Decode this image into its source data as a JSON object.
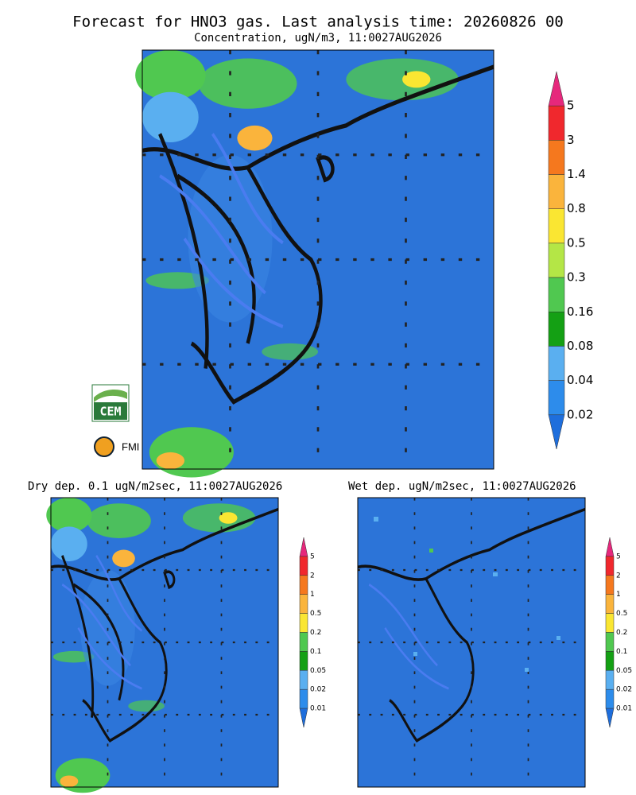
{
  "header": {
    "title": "Forecast for HNO3 gas. Last analysis time: 20260826 00",
    "subtitle": "Concentration, ugN/m3, 11:0027AUG2026"
  },
  "logos": [
    "CEM",
    "FMI"
  ],
  "panels": [
    {
      "title": "Dry dep. 0.1 ugN/m2sec, 11:0027AUG2026"
    },
    {
      "title": "Wet dep. ugN/m2sec, 11:0027AUG2026"
    }
  ],
  "legends": [
    {
      "labels": [
        "5",
        "3",
        "1.4",
        "0.8",
        "0.5",
        "0.3",
        "0.16",
        "0.08",
        "0.04",
        "0.02"
      ],
      "colors": [
        "#e6287c",
        "#f0282d",
        "#f5781e",
        "#fab43c",
        "#fae632",
        "#b4e646",
        "#50c850",
        "#14a014",
        "#5aaff0",
        "#2d8ceb",
        "#1e6edc"
      ]
    },
    {
      "labels": [
        "5",
        "2",
        "1",
        "0.5",
        "0.2",
        "0.1",
        "0.05",
        "0.02",
        "0.01"
      ],
      "colors": [
        "#e6287c",
        "#f0282d",
        "#f5781e",
        "#fab43c",
        "#fae632",
        "#50c850",
        "#14a014",
        "#5aaff0",
        "#2d8ceb",
        "#1e6edc"
      ]
    }
  ]
}
